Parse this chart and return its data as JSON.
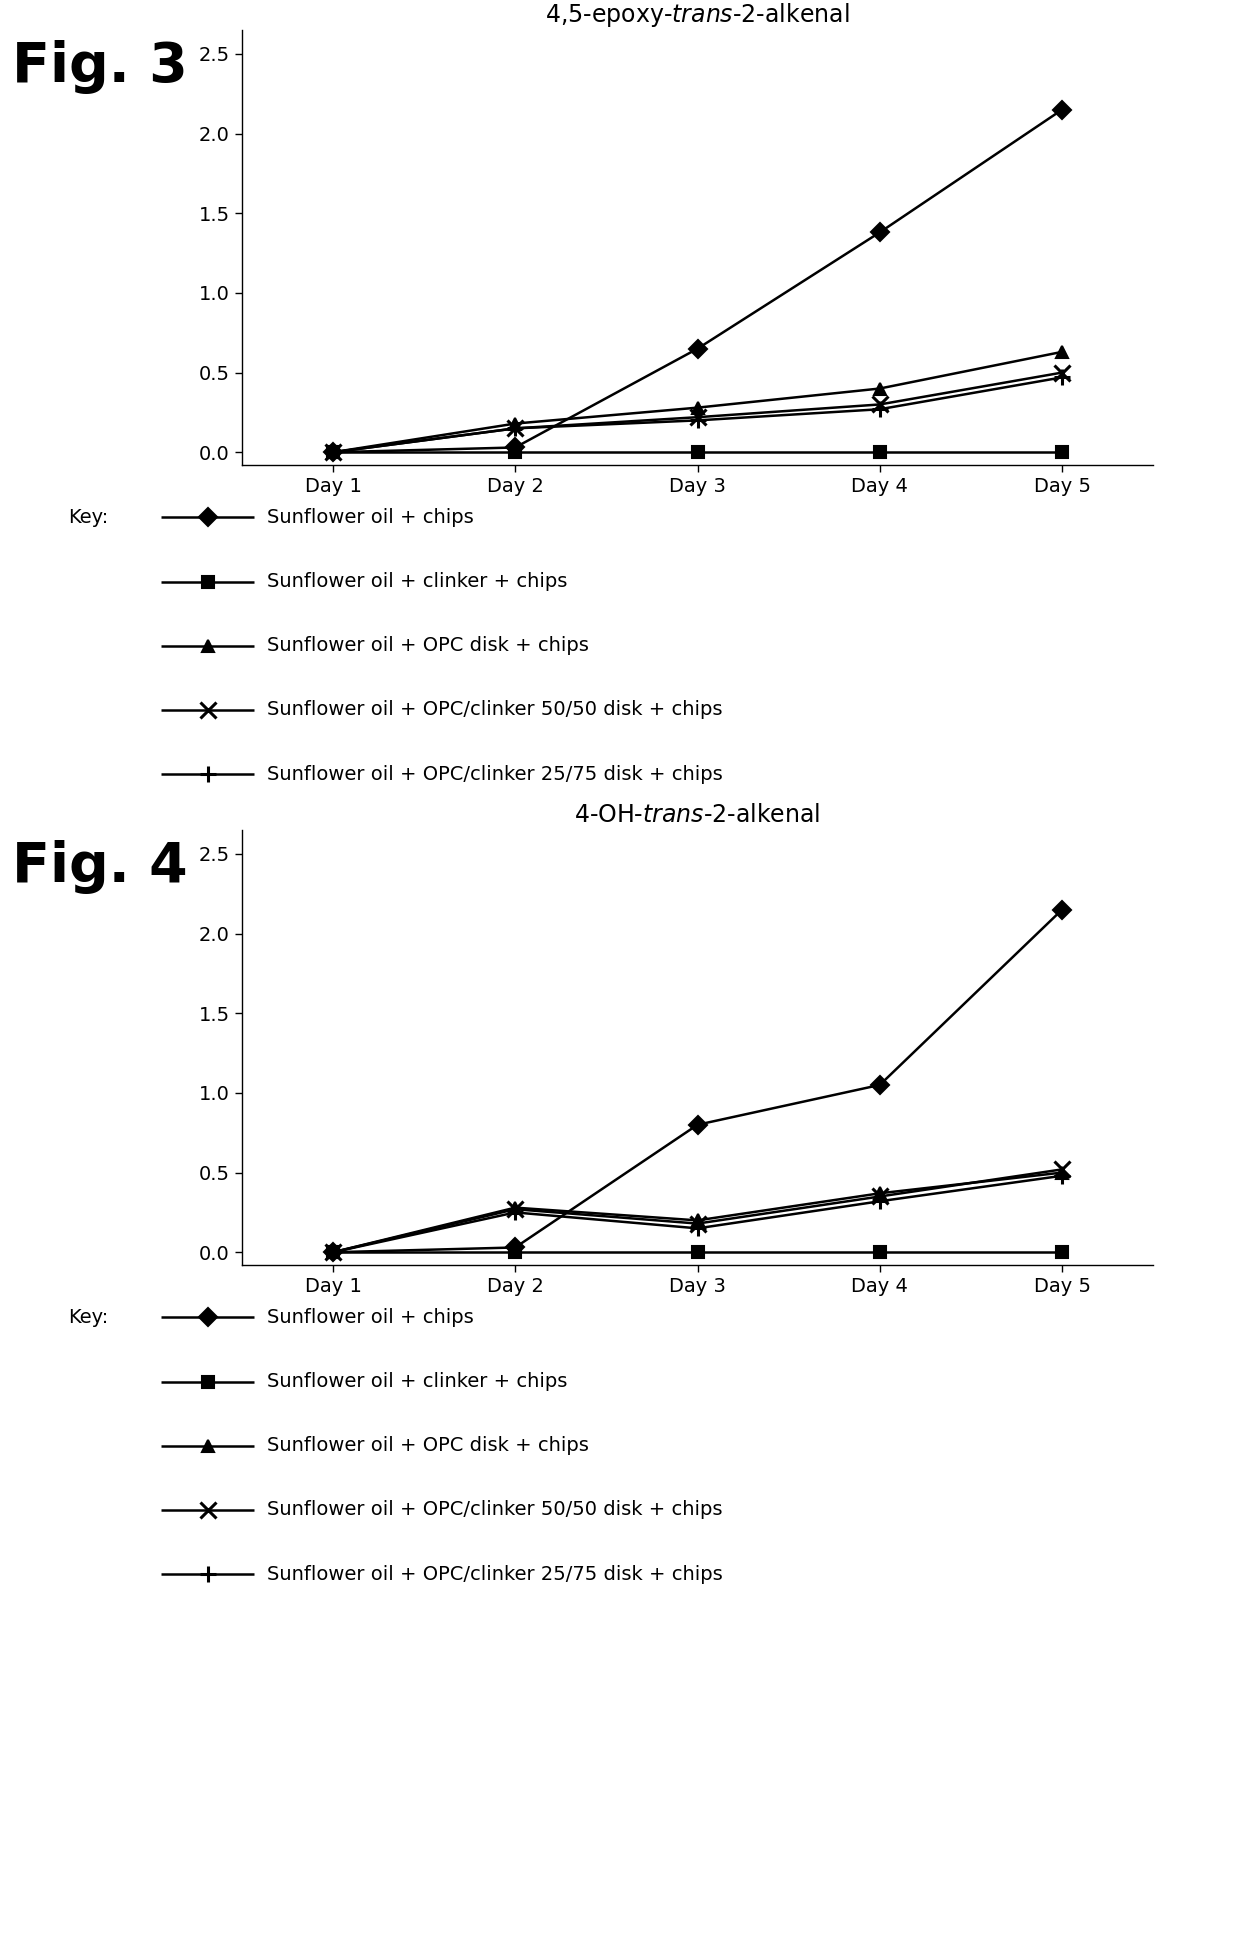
{
  "fig3": {
    "title": "4,5-epoxy-$\\mathit{trans}$-2-alkenal",
    "x_labels": [
      "Day 1",
      "Day 2",
      "Day 3",
      "Day 4",
      "Day 5"
    ],
    "x_vals": [
      1,
      2,
      3,
      4,
      5
    ],
    "series": [
      {
        "marker": "D",
        "values": [
          0.0,
          0.03,
          0.65,
          1.38,
          2.15
        ]
      },
      {
        "marker": "s",
        "values": [
          0.0,
          0.0,
          0.0,
          0.0,
          0.0
        ]
      },
      {
        "marker": "^",
        "values": [
          0.0,
          0.18,
          0.28,
          0.4,
          0.63
        ]
      },
      {
        "marker": "x",
        "values": [
          0.0,
          0.15,
          0.22,
          0.3,
          0.5
        ]
      },
      {
        "marker": "+",
        "values": [
          0.0,
          0.15,
          0.2,
          0.27,
          0.47
        ]
      }
    ],
    "ylim": [
      -0.08,
      2.65
    ],
    "yticks": [
      0,
      0.5,
      1.0,
      1.5,
      2.0,
      2.5
    ]
  },
  "fig4": {
    "title": "4-OH-$\\mathit{trans}$-2-alkenal",
    "x_labels": [
      "Day 1",
      "Day 2",
      "Day 3",
      "Day 4",
      "Day 5"
    ],
    "x_vals": [
      1,
      2,
      3,
      4,
      5
    ],
    "series": [
      {
        "marker": "D",
        "values": [
          0.0,
          0.03,
          0.8,
          1.05,
          2.15
        ]
      },
      {
        "marker": "s",
        "values": [
          0.0,
          0.0,
          0.0,
          0.0,
          0.0
        ]
      },
      {
        "marker": "^",
        "values": [
          0.0,
          0.28,
          0.2,
          0.37,
          0.5
        ]
      },
      {
        "marker": "x",
        "values": [
          0.0,
          0.27,
          0.18,
          0.35,
          0.52
        ]
      },
      {
        "marker": "+",
        "values": [
          0.0,
          0.25,
          0.15,
          0.32,
          0.48
        ]
      }
    ],
    "ylim": [
      -0.08,
      2.65
    ],
    "yticks": [
      0,
      0.5,
      1.0,
      1.5,
      2.0,
      2.5
    ]
  },
  "key_labels": [
    "Sunflower oil + chips",
    "Sunflower oil + clinker + chips",
    "Sunflower oil + OPC disk + chips",
    "Sunflower oil + OPC/clinker 50/50 disk + chips",
    "Sunflower oil + OPC/clinker 25/75 disk + chips"
  ],
  "markers": [
    "D",
    "s",
    "^",
    "x",
    "+"
  ],
  "markersizes": [
    9,
    9,
    9,
    11,
    11
  ],
  "fig_labels": [
    "Fig. 3",
    "Fig. 4"
  ],
  "fig_label_fontsize": 40,
  "title_fontsize": 17,
  "tick_fontsize": 14,
  "key_fontsize": 14
}
